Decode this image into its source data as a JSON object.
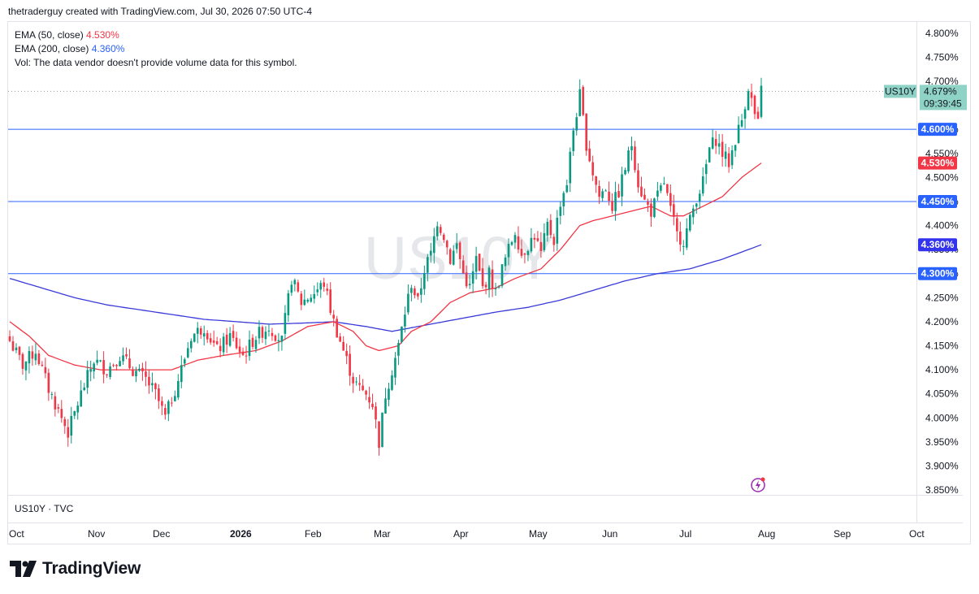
{
  "header": {
    "text": "thetraderguy created with TradingView.com, Jul 30, 2026 07:50 UTC-4"
  },
  "legend": {
    "ema50_label": "EMA (50, close)",
    "ema50_value": "4.530%",
    "ema200_label": "EMA (200, close)",
    "ema200_value": "4.360%",
    "vol_text": "Vol: The data vendor doesn't provide volume data for this symbol."
  },
  "watermark": "US10Y",
  "lower_pane_label": "US10Y · TVC",
  "brand": "TradingView",
  "colors": {
    "bull": "#089981",
    "bear": "#f23645",
    "ema50": "#f23645",
    "ema200": "#3a3ad9",
    "hline": "#2962ff",
    "last_price_bg": "#8fd3c6"
  },
  "chart_data": {
    "type": "candlestick",
    "symbol": "US10Y",
    "ylim": [
      3.84,
      4.825
    ],
    "yticks": [
      "4.800%",
      "4.750%",
      "4.700%",
      "4.650%",
      "4.600%",
      "4.550%",
      "4.500%",
      "4.450%",
      "4.400%",
      "4.350%",
      "4.300%",
      "4.250%",
      "4.200%",
      "4.150%",
      "4.100%",
      "4.050%",
      "4.000%",
      "3.950%",
      "3.900%",
      "3.850%"
    ],
    "x_labels": [
      "Oct",
      "Nov",
      "Dec",
      "2026",
      "Feb",
      "Mar",
      "Apr",
      "May",
      "Jun",
      "Jul",
      "Aug",
      "Sep",
      "Oct"
    ],
    "horizontal_lines": [
      {
        "value": 4.6,
        "label": "4.600%"
      },
      {
        "value": 4.45,
        "label": "4.450%"
      },
      {
        "value": 4.3,
        "label": "4.300%"
      }
    ],
    "last_price": {
      "symbol": "US10Y",
      "value": "4.679%",
      "countdown": "09:39:45",
      "y": 4.679
    },
    "ema_labels": [
      {
        "name": "EMA 50",
        "value": "4.530%",
        "y": 4.53
      },
      {
        "name": "EMA 200",
        "value": "4.360%",
        "y": 4.36
      }
    ],
    "close_anchors": [
      [
        0,
        4.16
      ],
      [
        4,
        4.11
      ],
      [
        8,
        4.14
      ],
      [
        12,
        4.06
      ],
      [
        16,
        4.0
      ],
      [
        18,
        3.97
      ],
      [
        22,
        4.05
      ],
      [
        26,
        4.12
      ],
      [
        30,
        4.1
      ],
      [
        34,
        4.13
      ],
      [
        38,
        4.1
      ],
      [
        42,
        4.08
      ],
      [
        45,
        4.05
      ],
      [
        48,
        4.0
      ],
      [
        52,
        4.08
      ],
      [
        56,
        4.17
      ],
      [
        60,
        4.19
      ],
      [
        64,
        4.14
      ],
      [
        68,
        4.17
      ],
      [
        72,
        4.13
      ],
      [
        76,
        4.17
      ],
      [
        80,
        4.19
      ],
      [
        84,
        4.16
      ],
      [
        87,
        4.29
      ],
      [
        90,
        4.24
      ],
      [
        94,
        4.26
      ],
      [
        97,
        4.28
      ],
      [
        100,
        4.2
      ],
      [
        103,
        4.14
      ],
      [
        106,
        4.08
      ],
      [
        108,
        4.06
      ],
      [
        110,
        4.05
      ],
      [
        112,
        4.03
      ],
      [
        114,
        3.95
      ],
      [
        116,
        4.05
      ],
      [
        118,
        4.1
      ],
      [
        120,
        4.15
      ],
      [
        122,
        4.22
      ],
      [
        124,
        4.28
      ],
      [
        126,
        4.24
      ],
      [
        128,
        4.31
      ],
      [
        130,
        4.34
      ],
      [
        132,
        4.41
      ],
      [
        134,
        4.38
      ],
      [
        136,
        4.33
      ],
      [
        138,
        4.36
      ],
      [
        140,
        4.3
      ],
      [
        142,
        4.27
      ],
      [
        144,
        4.33
      ],
      [
        146,
        4.27
      ],
      [
        148,
        4.3
      ],
      [
        150,
        4.26
      ],
      [
        152,
        4.31
      ],
      [
        154,
        4.35
      ],
      [
        156,
        4.39
      ],
      [
        158,
        4.34
      ],
      [
        160,
        4.36
      ],
      [
        162,
        4.38
      ],
      [
        164,
        4.34
      ],
      [
        166,
        4.4
      ],
      [
        168,
        4.37
      ],
      [
        170,
        4.45
      ],
      [
        172,
        4.49
      ],
      [
        174,
        4.6
      ],
      [
        176,
        4.67
      ],
      [
        178,
        4.57
      ],
      [
        180,
        4.51
      ],
      [
        182,
        4.46
      ],
      [
        184,
        4.48
      ],
      [
        186,
        4.44
      ],
      [
        188,
        4.47
      ],
      [
        190,
        4.52
      ],
      [
        192,
        4.57
      ],
      [
        194,
        4.49
      ],
      [
        196,
        4.45
      ],
      [
        198,
        4.43
      ],
      [
        200,
        4.46
      ],
      [
        202,
        4.49
      ],
      [
        204,
        4.43
      ],
      [
        206,
        4.38
      ],
      [
        208,
        4.37
      ],
      [
        210,
        4.41
      ],
      [
        212,
        4.46
      ],
      [
        214,
        4.49
      ],
      [
        216,
        4.56
      ],
      [
        218,
        4.58
      ],
      [
        220,
        4.55
      ],
      [
        222,
        4.53
      ],
      [
        224,
        4.58
      ],
      [
        226,
        4.62
      ],
      [
        228,
        4.69
      ],
      [
        230,
        4.63
      ],
      [
        231,
        4.61
      ],
      [
        232,
        4.68
      ]
    ],
    "ema50_anchors": [
      [
        0,
        4.2
      ],
      [
        6,
        4.17
      ],
      [
        12,
        4.13
      ],
      [
        20,
        4.11
      ],
      [
        28,
        4.1
      ],
      [
        40,
        4.1
      ],
      [
        50,
        4.1
      ],
      [
        58,
        4.12
      ],
      [
        66,
        4.13
      ],
      [
        76,
        4.14
      ],
      [
        84,
        4.16
      ],
      [
        92,
        4.19
      ],
      [
        100,
        4.2
      ],
      [
        106,
        4.18
      ],
      [
        110,
        4.15
      ],
      [
        114,
        4.14
      ],
      [
        120,
        4.15
      ],
      [
        124,
        4.18
      ],
      [
        130,
        4.2
      ],
      [
        136,
        4.24
      ],
      [
        142,
        4.26
      ],
      [
        150,
        4.27
      ],
      [
        156,
        4.29
      ],
      [
        164,
        4.31
      ],
      [
        170,
        4.35
      ],
      [
        176,
        4.4
      ],
      [
        180,
        4.41
      ],
      [
        186,
        4.42
      ],
      [
        192,
        4.43
      ],
      [
        198,
        4.44
      ],
      [
        204,
        4.42
      ],
      [
        208,
        4.42
      ],
      [
        214,
        4.44
      ],
      [
        220,
        4.46
      ],
      [
        226,
        4.5
      ],
      [
        232,
        4.53
      ]
    ],
    "ema200_anchors": [
      [
        0,
        4.29
      ],
      [
        10,
        4.27
      ],
      [
        20,
        4.25
      ],
      [
        30,
        4.235
      ],
      [
        40,
        4.225
      ],
      [
        50,
        4.215
      ],
      [
        60,
        4.205
      ],
      [
        70,
        4.2
      ],
      [
        80,
        4.195
      ],
      [
        90,
        4.197
      ],
      [
        100,
        4.2
      ],
      [
        110,
        4.19
      ],
      [
        118,
        4.18
      ],
      [
        126,
        4.19
      ],
      [
        134,
        4.2
      ],
      [
        142,
        4.21
      ],
      [
        150,
        4.22
      ],
      [
        160,
        4.23
      ],
      [
        170,
        4.245
      ],
      [
        180,
        4.265
      ],
      [
        190,
        4.285
      ],
      [
        200,
        4.3
      ],
      [
        210,
        4.31
      ],
      [
        220,
        4.33
      ],
      [
        226,
        4.345
      ],
      [
        232,
        4.36
      ]
    ]
  }
}
